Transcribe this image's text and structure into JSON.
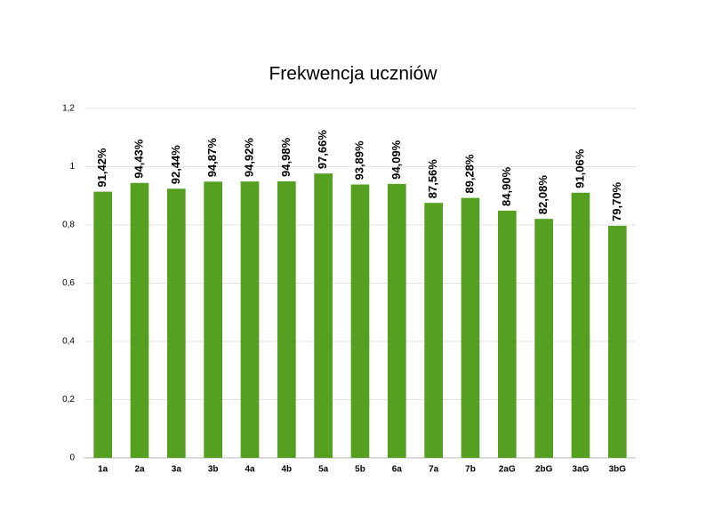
{
  "chart_data": {
    "type": "bar",
    "title": "Frekwencja uczniów",
    "categories": [
      "1a",
      "2a",
      "3a",
      "3b",
      "4a",
      "4b",
      "5a",
      "5b",
      "6a",
      "7a",
      "7b",
      "2aG",
      "2bG",
      "3aG",
      "3bG"
    ],
    "values": [
      0.9142,
      0.9443,
      0.9244,
      0.9487,
      0.9492,
      0.9498,
      0.9766,
      0.9389,
      0.9409,
      0.8756,
      0.8928,
      0.849,
      0.8208,
      0.9106,
      0.797
    ],
    "value_labels": [
      "91,42%",
      "94,43%",
      "92,44%",
      "94,87%",
      "94,92%",
      "94,98%",
      "97,66%",
      "93,89%",
      "94,09%",
      "87,56%",
      "89,28%",
      "84,90%",
      "82,08%",
      "91,06%",
      "79,70%"
    ],
    "color": "#56a021",
    "ylim": [
      0,
      1.2
    ],
    "yticks": [
      0,
      {
        "value": 0.2,
        "label": "0,2"
      },
      {
        "value": 0.4,
        "label": "0,4"
      },
      {
        "value": 0.6,
        "label": "0,6"
      },
      {
        "value": 0.8,
        "label": "0,8"
      },
      1,
      {
        "value": 1.2,
        "label": "1,2"
      }
    ],
    "grid": true
  }
}
